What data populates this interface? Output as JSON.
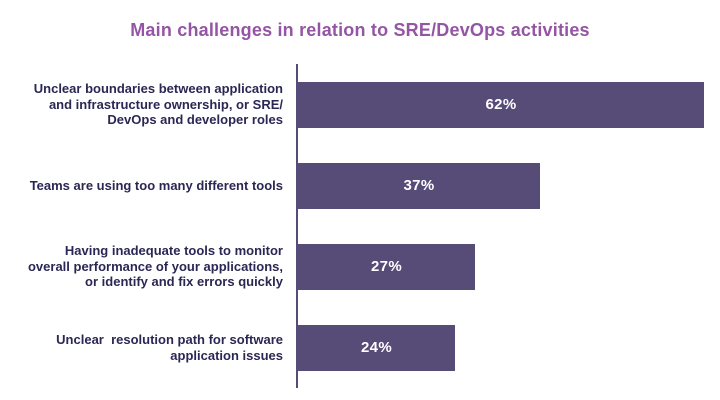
{
  "page": {
    "background_color": "#ffffff"
  },
  "chart_data": {
    "type": "bar",
    "orientation": "horizontal",
    "title": "Main challenges in relation to SRE/DevOps activities",
    "title_color": "#9455a4",
    "bar_color": "#574b77",
    "category_label_color": "#2b2754",
    "value_label_color": "#ffffff",
    "axis_line_color": "#574b77",
    "grid": false,
    "legend": false,
    "value_label_position": "center-of-bar",
    "xlim": [
      0,
      64.5
    ],
    "categories": [
      "Unclear boundaries between application\nand infrastructure ownership, or SRE/\nDevOps and developer roles",
      "Teams are using too many different tools",
      "Having inadequate tools to monitor\noverall performance of your applications,\nor identify and fix errors quickly",
      "Unclear  resolution path for software\napplication issues"
    ],
    "values": [
      62,
      37,
      27,
      24
    ],
    "value_labels": [
      "62%",
      "37%",
      "27%",
      "24%"
    ]
  }
}
